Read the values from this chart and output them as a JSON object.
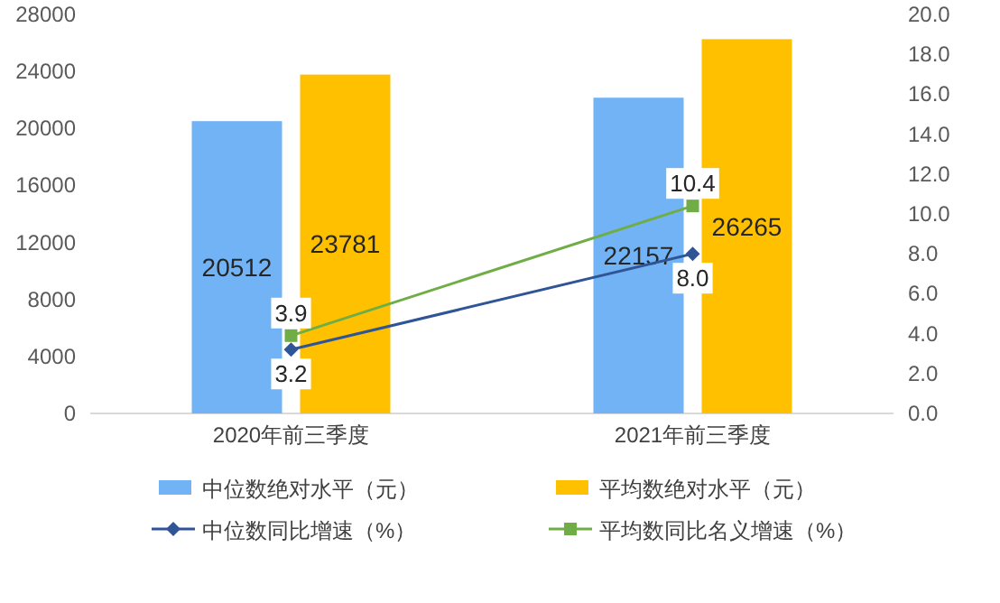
{
  "chart_data": {
    "type": "bar",
    "categories": [
      "2020年前三季度",
      "2021年前三季度"
    ],
    "series": [
      {
        "name": "中位数绝对水平（元）",
        "color": "#71b3f5",
        "values": [
          20512,
          22157
        ]
      },
      {
        "name": "平均数绝对水平（元）",
        "color": "#ffc000",
        "values": [
          23781,
          26265
        ]
      },
      {
        "name": "中位数同比增速（%）",
        "type": "line",
        "axis": "y2",
        "color": "#2f5597",
        "marker": "diamond",
        "values": [
          3.2,
          8.0
        ],
        "value_labels": [
          "3.2",
          "8.0"
        ]
      },
      {
        "name": "平均数同比名义增速（%）",
        "type": "line",
        "axis": "y2",
        "color": "#70ad47",
        "marker": "square",
        "values": [
          3.9,
          10.4
        ],
        "value_labels": [
          "3.9",
          "10.4"
        ]
      }
    ],
    "ylim": [
      0,
      28000
    ],
    "yticks": [
      0,
      4000,
      8000,
      12000,
      16000,
      20000,
      24000,
      28000
    ],
    "y2lim": [
      0,
      20
    ],
    "y2ticks": [
      {
        "value": 0,
        "label": "0.0"
      },
      {
        "value": 2,
        "label": "2.0"
      },
      {
        "value": 4,
        "label": "4.0"
      },
      {
        "value": 6,
        "label": "6.0"
      },
      {
        "value": 8,
        "label": "8.0"
      },
      {
        "value": 10,
        "label": "10.0"
      },
      {
        "value": 12,
        "label": "12.0"
      },
      {
        "value": 14,
        "label": "14.0"
      },
      {
        "value": 16,
        "label": "16.0"
      },
      {
        "value": 18,
        "label": "18.0"
      },
      {
        "value": 20,
        "label": "20.0"
      }
    ],
    "data_labels": true,
    "legend": "bottom"
  }
}
